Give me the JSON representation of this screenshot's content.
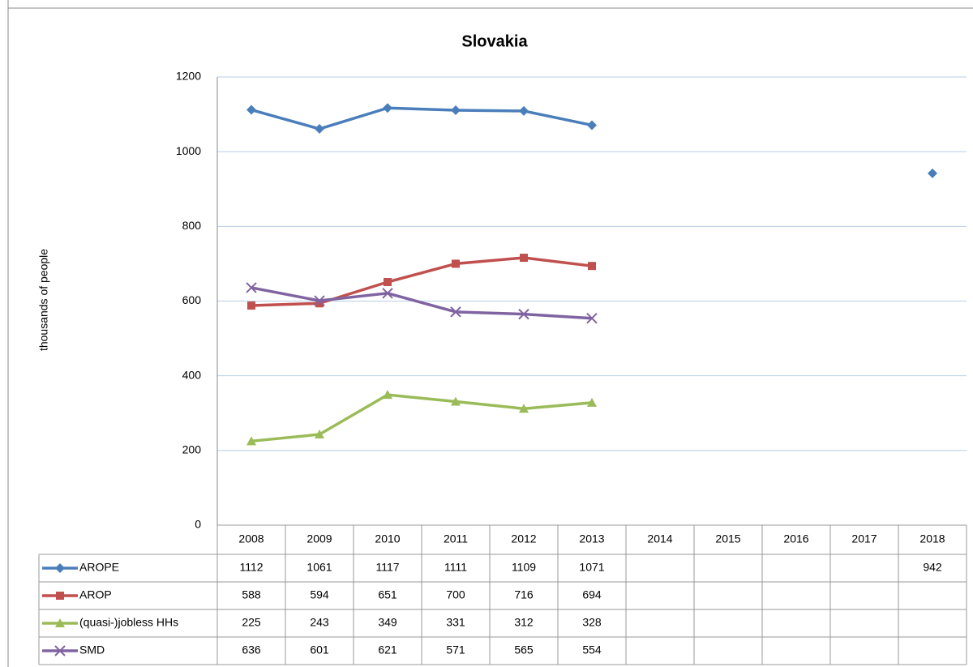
{
  "chart_data": {
    "type": "line",
    "title": "Slovakia",
    "y_label": "thousands of people",
    "categories": [
      "2008",
      "2009",
      "2010",
      "2011",
      "2012",
      "2013",
      "2014",
      "2015",
      "2016",
      "2017",
      "2018"
    ],
    "series": [
      {
        "name": "AROPE",
        "color": "#4a7ebb",
        "marker": "diamond",
        "values": [
          1112,
          1061,
          1117,
          1111,
          1109,
          1071,
          null,
          null,
          null,
          null,
          942
        ]
      },
      {
        "name": "AROP",
        "color": "#c0504d",
        "marker": "square",
        "values": [
          588,
          594,
          651,
          700,
          716,
          694,
          null,
          null,
          null,
          null,
          null
        ]
      },
      {
        "name": "(quasi-)jobless HHs",
        "color": "#9bbb59",
        "marker": "triangle",
        "values": [
          225,
          243,
          349,
          331,
          312,
          328,
          null,
          null,
          null,
          null,
          null
        ]
      },
      {
        "name": "SMD",
        "color": "#8064a2",
        "marker": "x",
        "values": [
          636,
          601,
          621,
          571,
          565,
          554,
          null,
          null,
          null,
          null,
          null
        ]
      }
    ],
    "ylim": [
      0,
      1200
    ],
    "yticks": [
      0,
      200,
      400,
      600,
      800,
      1000,
      1200
    ],
    "grid": true,
    "data_table": true
  }
}
